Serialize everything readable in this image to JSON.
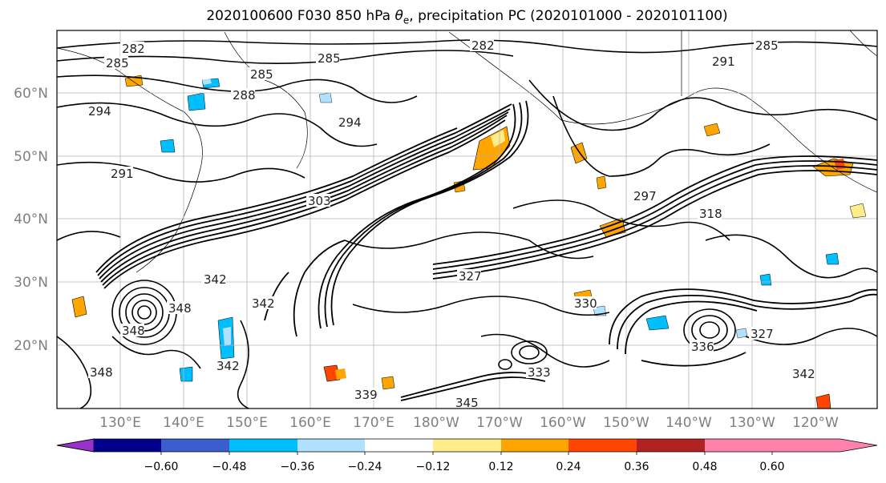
{
  "title_main": "2020100600 F030 850 hPa ",
  "title_symbol": "θ",
  "title_sub": "e",
  "title_rest": ", precipitation PC (2020101000 - 2020101100)",
  "map": {
    "lat_ticks": [
      "60°N",
      "50°N",
      "40°N",
      "30°N",
      "20°N"
    ],
    "lon_ticks": [
      "130°E",
      "140°E",
      "150°E",
      "160°E",
      "170°E",
      "180°W",
      "170°W",
      "160°W",
      "150°W",
      "140°W",
      "130°W",
      "120°W"
    ],
    "contour_labels": [
      "282",
      "285",
      "282",
      "285",
      "285",
      "285",
      "291",
      "294",
      "288",
      "294",
      "291",
      "303",
      "297",
      "318",
      "327",
      "342",
      "348",
      "348",
      "342",
      "339",
      "333",
      "345",
      "330",
      "342",
      "327",
      "336",
      "348",
      "342"
    ]
  },
  "colorbar": {
    "levels": [
      "−0.60",
      "−0.48",
      "−0.36",
      "−0.24",
      "−0.12",
      "0.12",
      "0.24",
      "0.36",
      "0.48",
      "0.60"
    ],
    "colors": [
      "#9932cc",
      "#00008b",
      "#3a5fcd",
      "#00bfff",
      "#b0e2ff",
      "#ffffff",
      "#ffec8b",
      "#ffa500",
      "#ff4500",
      "#b22222",
      "#ff82ab"
    ]
  }
}
